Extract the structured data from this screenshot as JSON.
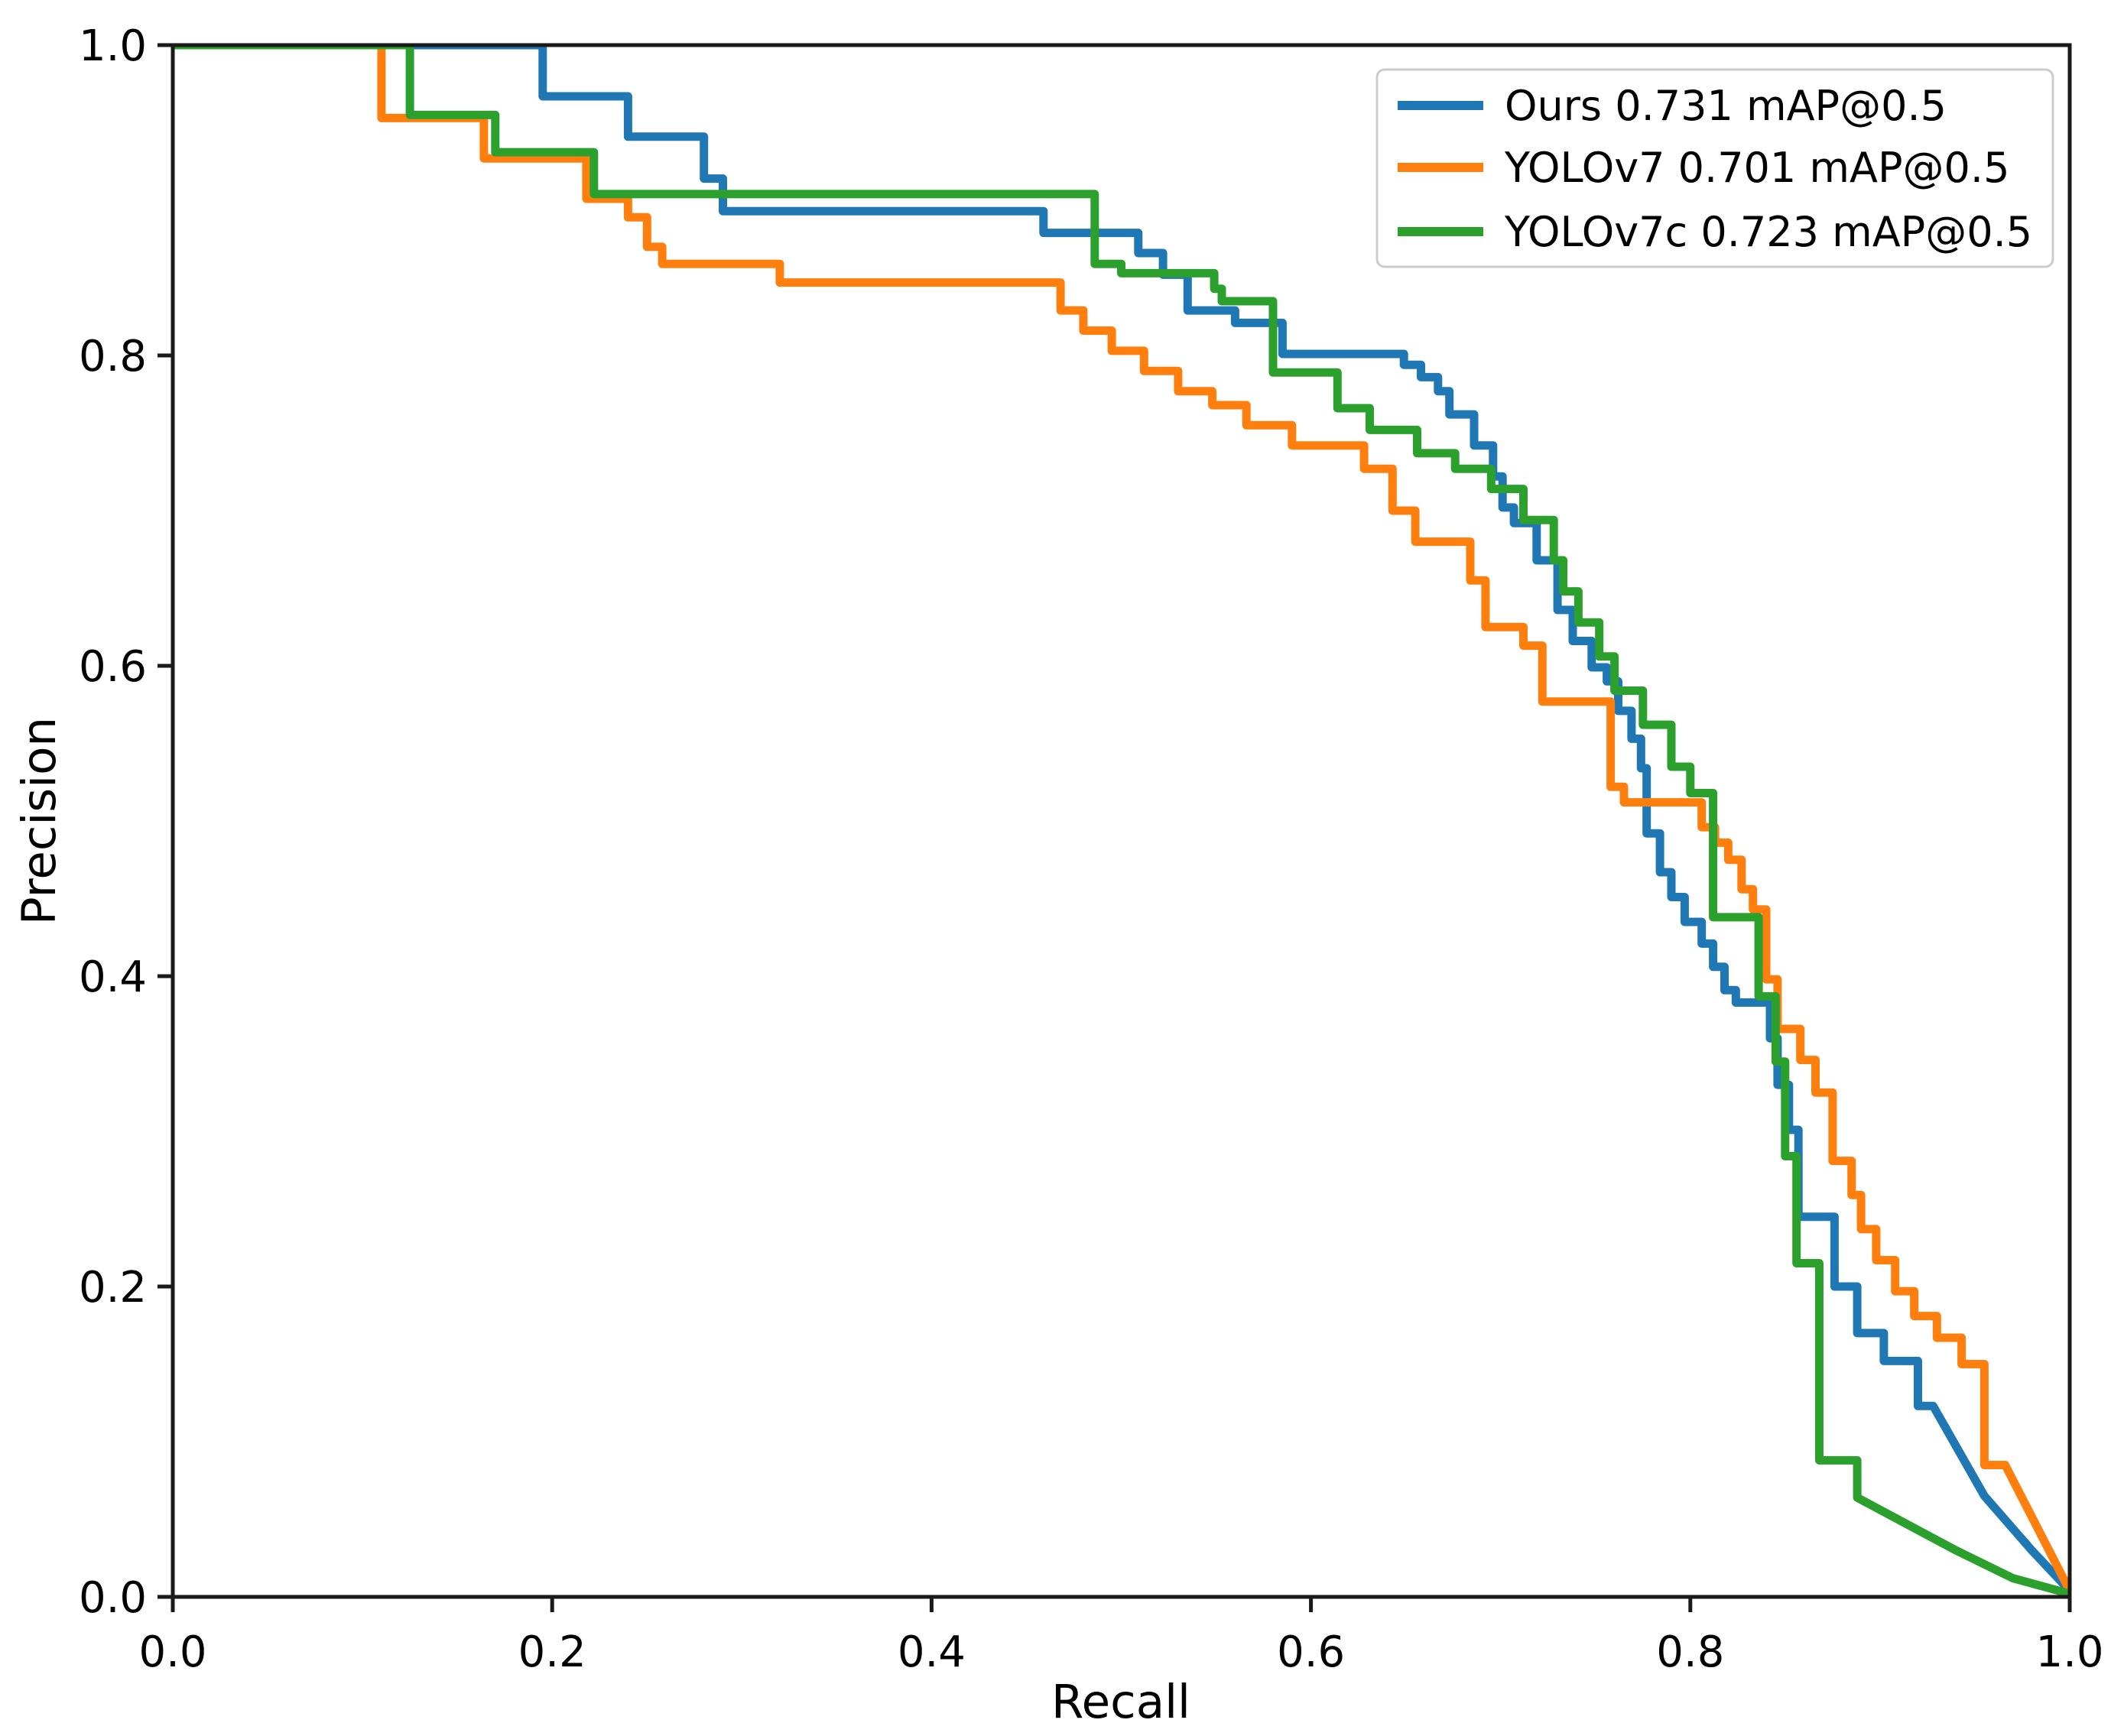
{
  "figure": {
    "type_note": "precision-recall curve comparison",
    "background": "#ffffff",
    "axis_color": "#1a1a1a",
    "text_color": "#000000",
    "legend_border_color": "#cccccc",
    "legend_background": "#ffffff"
  },
  "chart_data": {
    "type": "line",
    "subtype": "step-precision-recall",
    "title": "",
    "xlabel": "Recall",
    "ylabel": "Precision",
    "xlim": [
      0.0,
      1.0
    ],
    "ylim": [
      0.0,
      1.0
    ],
    "grid": false,
    "legend_position": "upper right",
    "x_ticks": [
      {
        "value": 0.0,
        "label": "0.0"
      },
      {
        "value": 0.2,
        "label": "0.2"
      },
      {
        "value": 0.4,
        "label": "0.4"
      },
      {
        "value": 0.6,
        "label": "0.6"
      },
      {
        "value": 0.8,
        "label": "0.8"
      },
      {
        "value": 1.0,
        "label": "1.0"
      }
    ],
    "y_ticks": [
      {
        "value": 0.0,
        "label": "0.0"
      },
      {
        "value": 0.2,
        "label": "0.2"
      },
      {
        "value": 0.4,
        "label": "0.4"
      },
      {
        "value": 0.6,
        "label": "0.6"
      },
      {
        "value": 0.8,
        "label": "0.8"
      },
      {
        "value": 1.0,
        "label": "1.0"
      }
    ],
    "series": [
      {
        "name": "Ours 0.731 mAP@0.5",
        "map_at_05": 0.731,
        "color": "#1f77b4",
        "points": [
          [
            0.0,
            1.0
          ],
          [
            0.195,
            1.0
          ],
          [
            0.195,
            0.967
          ],
          [
            0.24,
            0.967
          ],
          [
            0.24,
            0.941
          ],
          [
            0.28,
            0.941
          ],
          [
            0.28,
            0.914
          ],
          [
            0.29,
            0.914
          ],
          [
            0.29,
            0.893
          ],
          [
            0.459,
            0.893
          ],
          [
            0.459,
            0.879
          ],
          [
            0.509,
            0.879
          ],
          [
            0.509,
            0.866
          ],
          [
            0.522,
            0.866
          ],
          [
            0.522,
            0.852
          ],
          [
            0.535,
            0.852
          ],
          [
            0.535,
            0.829
          ],
          [
            0.56,
            0.829
          ],
          [
            0.56,
            0.821
          ],
          [
            0.585,
            0.821
          ],
          [
            0.585,
            0.801
          ],
          [
            0.649,
            0.801
          ],
          [
            0.649,
            0.794
          ],
          [
            0.658,
            0.794
          ],
          [
            0.658,
            0.786
          ],
          [
            0.667,
            0.786
          ],
          [
            0.667,
            0.777
          ],
          [
            0.673,
            0.777
          ],
          [
            0.673,
            0.762
          ],
          [
            0.686,
            0.762
          ],
          [
            0.686,
            0.742
          ],
          [
            0.696,
            0.742
          ],
          [
            0.696,
            0.722
          ],
          [
            0.701,
            0.722
          ],
          [
            0.701,
            0.702
          ],
          [
            0.707,
            0.702
          ],
          [
            0.707,
            0.692
          ],
          [
            0.719,
            0.692
          ],
          [
            0.719,
            0.668
          ],
          [
            0.73,
            0.668
          ],
          [
            0.73,
            0.636
          ],
          [
            0.738,
            0.636
          ],
          [
            0.738,
            0.616
          ],
          [
            0.748,
            0.616
          ],
          [
            0.748,
            0.599
          ],
          [
            0.756,
            0.599
          ],
          [
            0.756,
            0.59
          ],
          [
            0.762,
            0.59
          ],
          [
            0.762,
            0.571
          ],
          [
            0.769,
            0.571
          ],
          [
            0.769,
            0.553
          ],
          [
            0.774,
            0.553
          ],
          [
            0.774,
            0.534
          ],
          [
            0.777,
            0.534
          ],
          [
            0.777,
            0.492
          ],
          [
            0.784,
            0.492
          ],
          [
            0.784,
            0.467
          ],
          [
            0.79,
            0.467
          ],
          [
            0.79,
            0.451
          ],
          [
            0.797,
            0.451
          ],
          [
            0.797,
            0.435
          ],
          [
            0.806,
            0.435
          ],
          [
            0.806,
            0.421
          ],
          [
            0.812,
            0.421
          ],
          [
            0.812,
            0.406
          ],
          [
            0.818,
            0.406
          ],
          [
            0.818,
            0.391
          ],
          [
            0.824,
            0.391
          ],
          [
            0.824,
            0.383
          ],
          [
            0.842,
            0.383
          ],
          [
            0.842,
            0.36
          ],
          [
            0.846,
            0.36
          ],
          [
            0.846,
            0.33
          ],
          [
            0.852,
            0.33
          ],
          [
            0.852,
            0.301
          ],
          [
            0.857,
            0.301
          ],
          [
            0.857,
            0.245
          ],
          [
            0.876,
            0.245
          ],
          [
            0.876,
            0.2
          ],
          [
            0.888,
            0.2
          ],
          [
            0.888,
            0.17
          ],
          [
            0.902,
            0.17
          ],
          [
            0.902,
            0.152
          ],
          [
            0.92,
            0.152
          ],
          [
            0.92,
            0.123
          ],
          [
            0.928,
            0.123
          ],
          [
            0.955,
            0.065
          ],
          [
            0.98,
            0.03
          ],
          [
            1.0,
            0.004
          ]
        ]
      },
      {
        "name": "YOLOv7 0.701 mAP@0.5",
        "map_at_05": 0.701,
        "color": "#ff7f0e",
        "points": [
          [
            0.0,
            1.0
          ],
          [
            0.11,
            1.0
          ],
          [
            0.11,
            0.953
          ],
          [
            0.164,
            0.953
          ],
          [
            0.164,
            0.927
          ],
          [
            0.218,
            0.927
          ],
          [
            0.218,
            0.901
          ],
          [
            0.24,
            0.901
          ],
          [
            0.24,
            0.889
          ],
          [
            0.25,
            0.889
          ],
          [
            0.25,
            0.87
          ],
          [
            0.258,
            0.87
          ],
          [
            0.258,
            0.859
          ],
          [
            0.32,
            0.859
          ],
          [
            0.32,
            0.847
          ],
          [
            0.468,
            0.847
          ],
          [
            0.468,
            0.829
          ],
          [
            0.48,
            0.829
          ],
          [
            0.48,
            0.816
          ],
          [
            0.495,
            0.816
          ],
          [
            0.495,
            0.803
          ],
          [
            0.512,
            0.803
          ],
          [
            0.512,
            0.79
          ],
          [
            0.53,
            0.79
          ],
          [
            0.53,
            0.777
          ],
          [
            0.548,
            0.777
          ],
          [
            0.548,
            0.768
          ],
          [
            0.566,
            0.768
          ],
          [
            0.566,
            0.755
          ],
          [
            0.59,
            0.755
          ],
          [
            0.59,
            0.742
          ],
          [
            0.628,
            0.742
          ],
          [
            0.628,
            0.727
          ],
          [
            0.643,
            0.727
          ],
          [
            0.643,
            0.7
          ],
          [
            0.655,
            0.7
          ],
          [
            0.655,
            0.68
          ],
          [
            0.684,
            0.68
          ],
          [
            0.684,
            0.655
          ],
          [
            0.692,
            0.655
          ],
          [
            0.692,
            0.625
          ],
          [
            0.712,
            0.625
          ],
          [
            0.712,
            0.613
          ],
          [
            0.722,
            0.613
          ],
          [
            0.722,
            0.577
          ],
          [
            0.758,
            0.577
          ],
          [
            0.758,
            0.522
          ],
          [
            0.765,
            0.522
          ],
          [
            0.765,
            0.512
          ],
          [
            0.806,
            0.512
          ],
          [
            0.806,
            0.496
          ],
          [
            0.813,
            0.496
          ],
          [
            0.813,
            0.486
          ],
          [
            0.82,
            0.486
          ],
          [
            0.82,
            0.475
          ],
          [
            0.827,
            0.475
          ],
          [
            0.827,
            0.456
          ],
          [
            0.833,
            0.456
          ],
          [
            0.833,
            0.443
          ],
          [
            0.84,
            0.443
          ],
          [
            0.84,
            0.398
          ],
          [
            0.846,
            0.398
          ],
          [
            0.846,
            0.366
          ],
          [
            0.858,
            0.366
          ],
          [
            0.858,
            0.346
          ],
          [
            0.866,
            0.346
          ],
          [
            0.866,
            0.325
          ],
          [
            0.875,
            0.325
          ],
          [
            0.875,
            0.281
          ],
          [
            0.885,
            0.281
          ],
          [
            0.885,
            0.259
          ],
          [
            0.89,
            0.259
          ],
          [
            0.89,
            0.237
          ],
          [
            0.898,
            0.237
          ],
          [
            0.898,
            0.217
          ],
          [
            0.908,
            0.217
          ],
          [
            0.908,
            0.197
          ],
          [
            0.918,
            0.197
          ],
          [
            0.918,
            0.181
          ],
          [
            0.93,
            0.181
          ],
          [
            0.93,
            0.167
          ],
          [
            0.943,
            0.167
          ],
          [
            0.943,
            0.15
          ],
          [
            0.955,
            0.15
          ],
          [
            0.955,
            0.085
          ],
          [
            0.966,
            0.085
          ],
          [
            1.0,
            0.004
          ]
        ]
      },
      {
        "name": "YOLOv7c 0.723 mAP@0.5",
        "map_at_05": 0.723,
        "color": "#2ca02c",
        "points": [
          [
            0.0,
            1.0
          ],
          [
            0.125,
            1.0
          ],
          [
            0.125,
            0.955
          ],
          [
            0.17,
            0.955
          ],
          [
            0.17,
            0.931
          ],
          [
            0.222,
            0.931
          ],
          [
            0.222,
            0.904
          ],
          [
            0.486,
            0.904
          ],
          [
            0.486,
            0.859
          ],
          [
            0.5,
            0.859
          ],
          [
            0.5,
            0.853
          ],
          [
            0.549,
            0.853
          ],
          [
            0.549,
            0.843
          ],
          [
            0.553,
            0.843
          ],
          [
            0.553,
            0.835
          ],
          [
            0.58,
            0.835
          ],
          [
            0.58,
            0.789
          ],
          [
            0.614,
            0.789
          ],
          [
            0.614,
            0.766
          ],
          [
            0.631,
            0.766
          ],
          [
            0.631,
            0.752
          ],
          [
            0.656,
            0.752
          ],
          [
            0.656,
            0.737
          ],
          [
            0.676,
            0.737
          ],
          [
            0.676,
            0.727
          ],
          [
            0.695,
            0.727
          ],
          [
            0.695,
            0.714
          ],
          [
            0.712,
            0.714
          ],
          [
            0.712,
            0.694
          ],
          [
            0.728,
            0.694
          ],
          [
            0.728,
            0.668
          ],
          [
            0.733,
            0.668
          ],
          [
            0.733,
            0.648
          ],
          [
            0.741,
            0.648
          ],
          [
            0.741,
            0.628
          ],
          [
            0.752,
            0.628
          ],
          [
            0.752,
            0.606
          ],
          [
            0.76,
            0.606
          ],
          [
            0.76,
            0.584
          ],
          [
            0.775,
            0.584
          ],
          [
            0.775,
            0.562
          ],
          [
            0.79,
            0.562
          ],
          [
            0.79,
            0.535
          ],
          [
            0.8,
            0.535
          ],
          [
            0.8,
            0.518
          ],
          [
            0.812,
            0.518
          ],
          [
            0.812,
            0.438
          ],
          [
            0.836,
            0.438
          ],
          [
            0.836,
            0.387
          ],
          [
            0.845,
            0.387
          ],
          [
            0.845,
            0.345
          ],
          [
            0.85,
            0.345
          ],
          [
            0.85,
            0.284
          ],
          [
            0.856,
            0.284
          ],
          [
            0.856,
            0.215
          ],
          [
            0.868,
            0.215
          ],
          [
            0.868,
            0.088
          ],
          [
            0.888,
            0.088
          ],
          [
            0.888,
            0.064
          ],
          [
            0.94,
            0.03
          ],
          [
            0.97,
            0.012
          ],
          [
            1.0,
            0.002
          ]
        ]
      }
    ]
  }
}
